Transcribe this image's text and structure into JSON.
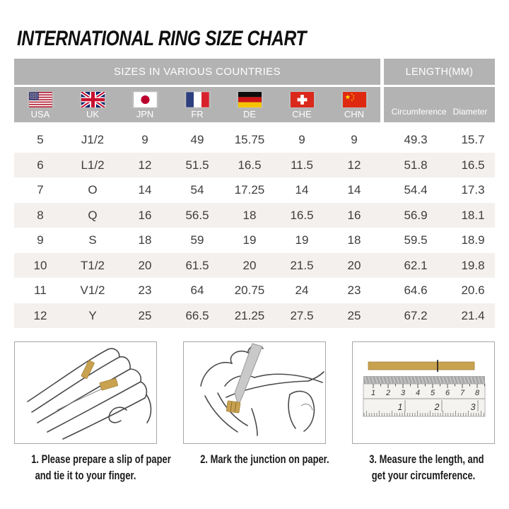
{
  "title": "INTERNATIONAL RING SIZE CHART",
  "table": {
    "group_headers": {
      "sizes": "SIZES IN VARIOUS COUNTRIES",
      "length": "LENGTH(MM)"
    },
    "countries": [
      {
        "code": "USA",
        "icon": "flag-usa-icon"
      },
      {
        "code": "UK",
        "icon": "flag-uk-icon"
      },
      {
        "code": "JPN",
        "icon": "flag-japan-icon"
      },
      {
        "code": "FR",
        "icon": "flag-france-icon"
      },
      {
        "code": "DE",
        "icon": "flag-germany-icon"
      },
      {
        "code": "CHE",
        "icon": "flag-switzerland-icon"
      },
      {
        "code": "CHN",
        "icon": "flag-china-icon"
      }
    ],
    "length_columns": [
      "Circumference",
      "Diameter"
    ],
    "rows": [
      [
        "5",
        "J1/2",
        "9",
        "49",
        "15.75",
        "9",
        "9",
        "49.3",
        "15.7"
      ],
      [
        "6",
        "L1/2",
        "12",
        "51.5",
        "16.5",
        "11.5",
        "12",
        "51.8",
        "16.5"
      ],
      [
        "7",
        "O",
        "14",
        "54",
        "17.25",
        "14",
        "14",
        "54.4",
        "17.3"
      ],
      [
        "8",
        "Q",
        "16",
        "56.5",
        "18",
        "16.5",
        "16",
        "56.9",
        "18.1"
      ],
      [
        "9",
        "S",
        "18",
        "59",
        "19",
        "19",
        "18",
        "59.5",
        "18.9"
      ],
      [
        "10",
        "T1/2",
        "20",
        "61.5",
        "20",
        "21.5",
        "20",
        "62.1",
        "19.8"
      ],
      [
        "11",
        "V1/2",
        "23",
        "64",
        "20.75",
        "24",
        "23",
        "64.6",
        "20.6"
      ],
      [
        "12",
        "Y",
        "25",
        "66.5",
        "21.25",
        "27.5",
        "25",
        "67.2",
        "21.4"
      ]
    ]
  },
  "steps": [
    {
      "illustration": "hand-with-paper-strip",
      "caption_line1": "1. Please prepare a slip of paper",
      "caption_line2": "and tie it to your finger."
    },
    {
      "illustration": "marking-junction-with-pen",
      "caption_line1": "2. Mark the junction on paper.",
      "caption_line2": ""
    },
    {
      "illustration": "ruler-measuring-strip",
      "caption_line1": "3. Measure the length, and",
      "caption_line2": "get your circumference."
    }
  ],
  "ruler": {
    "cm_numbers": [
      "1",
      "2",
      "3",
      "4",
      "5",
      "6",
      "7",
      "8"
    ],
    "inch_numbers": [
      "1",
      "2",
      "3"
    ]
  },
  "colors": {
    "header_gray": "#b3b3b3",
    "row_alt_beige": "#f4f0ed",
    "paper_strip_gold": "#c9a250",
    "cell_text": "#3d3d3d"
  }
}
